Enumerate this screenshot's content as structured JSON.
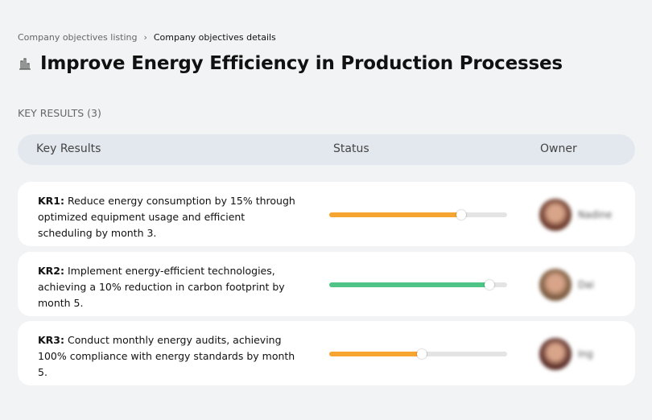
{
  "breadcrumb": {
    "items": [
      "Company objectives listing",
      "Company objectives details"
    ],
    "separator": "›"
  },
  "title": {
    "icon": "factory-icon",
    "text": "Improve Energy Efficiency in Production Processes"
  },
  "section": {
    "label": "KEY RESULTS (3)"
  },
  "table": {
    "headers": [
      "Key Results",
      "Status",
      "Owner"
    ],
    "rows": [
      {
        "code": "KR1:",
        "text": " Reduce energy consumption by 15% through optimized equipment usage and efficient scheduling by month 3.",
        "progress": 74,
        "color": "#f7a531",
        "owner": "Nadine",
        "avatar_color": "#6b3a2c"
      },
      {
        "code": "KR2:",
        "text": " Implement energy-efficient technologies, achieving a 10% reduction in carbon footprint by month 5.",
        "progress": 90,
        "color": "#4fc487",
        "owner": "Dai",
        "avatar_color": "#7a5a3f"
      },
      {
        "code": "KR3:",
        "text": " Conduct monthly energy audits, achieving 100% compliance with energy standards by month 5.",
        "progress": 52,
        "color": "#f7a531",
        "owner": "Ing",
        "avatar_color": "#5a2e28"
      }
    ]
  }
}
